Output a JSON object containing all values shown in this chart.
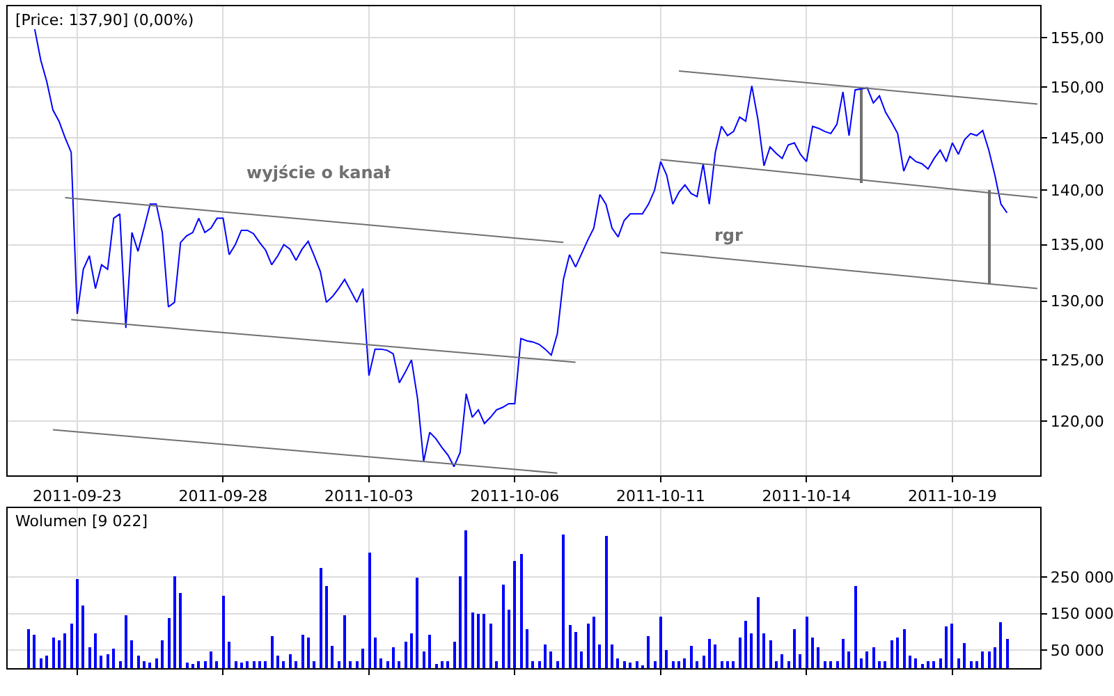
{
  "chart_data": [
    {
      "type": "line",
      "title": "[Price: 137,90] (0,00%)",
      "log": "y",
      "grid": true,
      "marker": "none",
      "line_style": "solid",
      "categories": [
        null,
        null,
        null,
        null,
        null,
        null,
        null,
        null,
        null,
        null,
        null,
        "2011-09-23",
        null,
        null,
        null,
        null,
        null,
        null,
        null,
        null,
        null,
        null,
        null,
        null,
        null,
        null,
        null,
        null,
        null,
        null,
        null,
        null,
        null,
        null,
        null,
        "2011-09-28",
        null,
        null,
        null,
        null,
        null,
        null,
        null,
        null,
        null,
        null,
        null,
        null,
        null,
        null,
        null,
        null,
        null,
        null,
        null,
        null,
        null,
        null,
        null,
        "2011-10-03",
        null,
        null,
        null,
        null,
        null,
        null,
        null,
        null,
        null,
        null,
        null,
        null,
        null,
        null,
        null,
        null,
        null,
        null,
        null,
        null,
        null,
        null,
        null,
        "2011-10-06",
        null,
        null,
        null,
        null,
        null,
        null,
        null,
        null,
        null,
        null,
        null,
        null,
        null,
        null,
        null,
        null,
        null,
        null,
        null,
        null,
        null,
        null,
        null,
        "2011-10-11",
        null,
        null,
        null,
        null,
        null,
        null,
        null,
        null,
        null,
        null,
        null,
        null,
        null,
        null,
        null,
        null,
        null,
        null,
        null,
        null,
        null,
        null,
        null,
        "2011-10-14",
        null,
        null,
        null,
        null,
        null,
        null,
        null,
        null,
        null,
        null,
        null,
        null,
        null,
        null,
        null,
        null,
        null,
        null,
        null,
        null,
        null,
        null,
        null,
        "2011-10-19",
        null,
        null,
        null,
        null,
        null,
        null,
        null,
        null,
        null,
        null,
        null,
        null,
        null,
        null
      ],
      "ylim": [
        115.7,
        158.3
      ],
      "yticks": [
        {
          "value": 120,
          "label": "120,00"
        },
        {
          "value": 125,
          "label": "125,00"
        },
        {
          "value": 130,
          "label": "130,00"
        },
        {
          "value": 135,
          "label": "135,00"
        },
        {
          "value": 140,
          "label": "140,00"
        },
        {
          "value": 145,
          "label": "145,00"
        },
        {
          "value": 150,
          "label": "150,00"
        },
        {
          "value": 155,
          "label": "155,00"
        }
      ],
      "annotations": [
        "wyjście o kanał",
        "rgr"
      ],
      "series": [
        {
          "color": "#0000ff",
          "values": [
            null,
            null,
            null,
            null,
            155.9,
            152.7,
            150.5,
            147.7,
            146.6,
            145.0,
            143.6,
            128.9,
            132.8,
            134.0,
            131.1,
            133.2,
            132.8,
            137.4,
            137.8,
            127.7,
            136.1,
            134.4,
            136.5,
            138.7,
            138.7,
            136.1,
            129.5,
            129.9,
            135.2,
            135.8,
            136.1,
            137.4,
            136.1,
            136.5,
            137.4,
            137.4,
            134.1,
            135.0,
            136.3,
            136.3,
            136.0,
            135.2,
            134.5,
            133.2,
            134.0,
            135.0,
            134.6,
            133.6,
            134.6,
            135.3,
            134.0,
            132.6,
            129.9,
            130.4,
            131.1,
            131.9,
            130.9,
            129.9,
            131.1,
            123.7,
            125.9,
            125.9,
            125.8,
            125.5,
            123.1,
            124.0,
            125.0,
            121.8,
            116.8,
            119.1,
            118.6,
            117.9,
            117.3,
            116.4,
            117.5,
            122.2,
            120.3,
            120.9,
            119.8,
            120.3,
            120.9,
            121.1,
            121.4,
            121.4,
            126.8,
            126.6,
            126.5,
            126.3,
            125.9,
            125.4,
            127.2,
            131.9,
            134.1,
            133.0,
            134.2,
            135.4,
            136.5,
            139.6,
            138.7,
            136.5,
            135.7,
            137.2,
            137.8,
            137.8,
            137.8,
            138.7,
            140.0,
            142.7,
            141.4,
            138.7,
            139.8,
            140.5,
            139.7,
            139.4,
            142.5,
            138.7,
            143.6,
            146.1,
            145.2,
            145.6,
            147.0,
            146.6,
            150.1,
            146.8,
            142.3,
            144.1,
            143.5,
            143.0,
            144.3,
            144.5,
            143.4,
            142.7,
            146.1,
            145.9,
            145.6,
            145.4,
            146.3,
            149.5,
            145.2,
            149.7,
            149.8,
            149.9,
            148.4,
            149.1,
            147.5,
            146.5,
            145.4,
            141.8,
            143.2,
            142.7,
            142.5,
            142.0,
            143.0,
            143.8,
            142.7,
            144.5,
            143.4,
            144.8,
            145.4,
            145.2,
            145.7,
            143.8,
            141.4,
            138.7,
            137.9,
            null,
            null,
            null,
            null,
            null
          ]
        },
        {
          "color": "#707070",
          "values": [
            null,
            null,
            null,
            null,
            null,
            null,
            null,
            null,
            null,
            139.3,
            null,
            null,
            null,
            null,
            null,
            null,
            null,
            null,
            null,
            null,
            null,
            null,
            null,
            null,
            null,
            null,
            null,
            null,
            null,
            null,
            null,
            null,
            null,
            null,
            null,
            null,
            null,
            null,
            null,
            null,
            null,
            null,
            null,
            null,
            null,
            null,
            null,
            null,
            null,
            null,
            null,
            null,
            null,
            null,
            null,
            null,
            null,
            null,
            null,
            null,
            null,
            null,
            null,
            null,
            null,
            null,
            null,
            null,
            null,
            null,
            null,
            null,
            null,
            null,
            null,
            null,
            null,
            null,
            null,
            null,
            null,
            null,
            null,
            null,
            null,
            null,
            null,
            null,
            null,
            null,
            null,
            135.2,
            null,
            null,
            null,
            null,
            null,
            null,
            null,
            null,
            null,
            null,
            null,
            null,
            null,
            null,
            null,
            null,
            null,
            null,
            null,
            null,
            null,
            null,
            null,
            null,
            null,
            null,
            null,
            null,
            null,
            null,
            null,
            null,
            null,
            null,
            null,
            null,
            null,
            null,
            null,
            null,
            null,
            null,
            null,
            null,
            null,
            null,
            null,
            null,
            null,
            null,
            null,
            null,
            null,
            null,
            null,
            null,
            null,
            null,
            null,
            null,
            null,
            null,
            null,
            null,
            null,
            null,
            null,
            null,
            null,
            null,
            null,
            null,
            null,
            null,
            null,
            null,
            null,
            null
          ]
        },
        {
          "color": "#707070",
          "values": [
            null,
            null,
            null,
            null,
            null,
            null,
            null,
            null,
            null,
            null,
            128.4,
            null,
            null,
            null,
            null,
            null,
            null,
            null,
            null,
            null,
            null,
            null,
            null,
            null,
            null,
            null,
            null,
            null,
            null,
            null,
            null,
            null,
            null,
            null,
            null,
            null,
            null,
            null,
            null,
            null,
            null,
            null,
            null,
            null,
            null,
            null,
            null,
            null,
            null,
            null,
            null,
            null,
            null,
            null,
            null,
            null,
            null,
            null,
            null,
            null,
            null,
            null,
            null,
            null,
            null,
            null,
            null,
            null,
            null,
            null,
            null,
            null,
            null,
            null,
            null,
            null,
            null,
            null,
            null,
            null,
            null,
            null,
            null,
            null,
            null,
            null,
            null,
            null,
            null,
            null,
            null,
            null,
            null,
            124.8,
            null,
            null,
            null,
            null,
            null,
            null,
            null,
            null,
            null,
            null,
            null,
            null,
            null,
            null,
            null,
            null,
            null,
            null,
            null,
            null,
            null,
            null,
            null,
            null,
            null,
            null,
            null,
            null,
            null,
            null,
            null,
            null,
            null,
            null,
            null,
            null,
            null,
            null,
            null,
            null,
            null,
            null,
            null,
            null,
            null,
            null,
            null,
            null,
            null,
            null,
            null,
            null,
            null,
            null,
            null,
            null,
            null,
            null,
            null,
            null,
            null,
            null,
            null,
            null,
            null,
            null,
            null,
            null,
            null,
            null,
            null,
            null,
            null,
            null,
            null,
            null
          ]
        },
        {
          "color": "#707070",
          "values": [
            null,
            null,
            null,
            null,
            null,
            null,
            null,
            119.3,
            null,
            null,
            null,
            null,
            null,
            null,
            null,
            null,
            null,
            null,
            null,
            null,
            null,
            null,
            null,
            null,
            null,
            null,
            null,
            null,
            null,
            null,
            null,
            null,
            null,
            null,
            null,
            null,
            null,
            null,
            null,
            null,
            null,
            null,
            null,
            null,
            null,
            null,
            null,
            null,
            null,
            null,
            null,
            null,
            null,
            null,
            null,
            null,
            null,
            null,
            null,
            null,
            null,
            null,
            null,
            null,
            null,
            null,
            null,
            null,
            null,
            null,
            null,
            null,
            null,
            null,
            null,
            null,
            null,
            null,
            null,
            null,
            null,
            null,
            null,
            null,
            null,
            null,
            null,
            null,
            null,
            null,
            115.9,
            null,
            null,
            null,
            null,
            null,
            null,
            null,
            null,
            null,
            null,
            null,
            null,
            null,
            null,
            null,
            null,
            null,
            null,
            null,
            null,
            null,
            null,
            null,
            null,
            null,
            null,
            null,
            null,
            null,
            null,
            null,
            null,
            null,
            null,
            null,
            null,
            null,
            null,
            null,
            null,
            null,
            null,
            null,
            null,
            null,
            null,
            null,
            null,
            null,
            null,
            null,
            null,
            null,
            null,
            null,
            null,
            null,
            null,
            null,
            null,
            null,
            null,
            null,
            null,
            null,
            null,
            null,
            null,
            null,
            null,
            null,
            null,
            null,
            null,
            null,
            null,
            null,
            null,
            null
          ]
        },
        {
          "color": "#707070",
          "values": [
            null,
            null,
            null,
            null,
            null,
            null,
            null,
            null,
            null,
            null,
            null,
            null,
            null,
            null,
            null,
            null,
            null,
            null,
            null,
            null,
            null,
            null,
            null,
            null,
            null,
            null,
            null,
            null,
            null,
            null,
            null,
            null,
            null,
            null,
            null,
            null,
            null,
            null,
            null,
            null,
            null,
            null,
            null,
            null,
            null,
            null,
            null,
            null,
            null,
            null,
            null,
            null,
            null,
            null,
            null,
            null,
            null,
            null,
            null,
            null,
            null,
            null,
            null,
            null,
            null,
            null,
            null,
            null,
            null,
            null,
            null,
            null,
            null,
            null,
            null,
            null,
            null,
            null,
            null,
            null,
            null,
            null,
            null,
            null,
            null,
            null,
            null,
            null,
            null,
            null,
            null,
            null,
            null,
            null,
            null,
            null,
            null,
            null,
            null,
            null,
            null,
            null,
            null,
            null,
            null,
            null,
            null,
            null,
            null,
            null,
            151.6,
            null,
            null,
            null,
            null,
            null,
            null,
            null,
            null,
            null,
            null,
            null,
            null,
            null,
            null,
            null,
            null,
            null,
            null,
            null,
            null,
            null,
            null,
            null,
            null,
            null,
            null,
            null,
            null,
            null,
            null,
            null,
            null,
            null,
            null,
            null,
            null,
            null,
            null,
            null,
            null,
            null,
            null,
            null,
            null,
            null,
            null,
            null,
            null,
            null,
            null,
            null,
            null,
            null,
            null,
            null,
            null,
            null,
            null,
            148.3
          ]
        },
        {
          "color": "#707070",
          "values": [
            null,
            null,
            null,
            null,
            null,
            null,
            null,
            null,
            null,
            null,
            null,
            null,
            null,
            null,
            null,
            null,
            null,
            null,
            null,
            null,
            null,
            null,
            null,
            null,
            null,
            null,
            null,
            null,
            null,
            null,
            null,
            null,
            null,
            null,
            null,
            null,
            null,
            null,
            null,
            null,
            null,
            null,
            null,
            null,
            null,
            null,
            null,
            null,
            null,
            null,
            null,
            null,
            null,
            null,
            null,
            null,
            null,
            null,
            null,
            null,
            null,
            null,
            null,
            null,
            null,
            null,
            null,
            null,
            null,
            null,
            null,
            null,
            null,
            null,
            null,
            null,
            null,
            null,
            null,
            null,
            null,
            null,
            null,
            null,
            null,
            null,
            null,
            null,
            null,
            null,
            null,
            null,
            null,
            null,
            null,
            null,
            null,
            null,
            null,
            null,
            null,
            null,
            null,
            null,
            null,
            null,
            null,
            142.9,
            null,
            null,
            null,
            null,
            null,
            null,
            null,
            null,
            null,
            null,
            null,
            null,
            null,
            null,
            null,
            null,
            null,
            null,
            null,
            null,
            null,
            null,
            null,
            null,
            null,
            null,
            null,
            null,
            null,
            null,
            null,
            null,
            null,
            null,
            null,
            null,
            null,
            null,
            null,
            null,
            null,
            null,
            null,
            null,
            null,
            null,
            null,
            null,
            null,
            null,
            null,
            null,
            null,
            null,
            null,
            null,
            null,
            null,
            null,
            null,
            null,
            139.3
          ]
        },
        {
          "color": "#707070",
          "values": [
            null,
            null,
            null,
            null,
            null,
            null,
            null,
            null,
            null,
            null,
            null,
            null,
            null,
            null,
            null,
            null,
            null,
            null,
            null,
            null,
            null,
            null,
            null,
            null,
            null,
            null,
            null,
            null,
            null,
            null,
            null,
            null,
            null,
            null,
            null,
            null,
            null,
            null,
            null,
            null,
            null,
            null,
            null,
            null,
            null,
            null,
            null,
            null,
            null,
            null,
            null,
            null,
            null,
            null,
            null,
            null,
            null,
            null,
            null,
            null,
            null,
            null,
            null,
            null,
            null,
            null,
            null,
            null,
            null,
            null,
            null,
            null,
            null,
            null,
            null,
            null,
            null,
            null,
            null,
            null,
            null,
            null,
            null,
            null,
            null,
            null,
            null,
            null,
            null,
            null,
            null,
            null,
            null,
            null,
            null,
            null,
            null,
            null,
            null,
            null,
            null,
            null,
            null,
            null,
            null,
            null,
            null,
            134.3,
            null,
            null,
            null,
            null,
            null,
            null,
            null,
            null,
            null,
            null,
            null,
            null,
            null,
            null,
            null,
            null,
            null,
            null,
            null,
            null,
            null,
            null,
            null,
            null,
            null,
            null,
            null,
            null,
            null,
            null,
            null,
            null,
            null,
            null,
            null,
            null,
            null,
            null,
            null,
            null,
            null,
            null,
            null,
            null,
            null,
            null,
            null,
            null,
            null,
            null,
            null,
            null,
            null,
            null,
            null,
            null,
            null,
            null,
            null,
            null,
            null,
            131.1
          ]
        },
        {
          "type": "bar",
          "color": "#707070",
          "values": [
            null,
            null,
            null,
            null,
            null,
            null,
            null,
            null,
            null,
            null,
            null,
            null,
            null,
            null,
            null,
            null,
            null,
            null,
            null,
            null,
            null,
            null,
            null,
            null,
            null,
            null,
            null,
            null,
            null,
            null,
            null,
            null,
            null,
            null,
            null,
            null,
            null,
            null,
            null,
            null,
            null,
            null,
            null,
            null,
            null,
            null,
            null,
            null,
            null,
            null,
            null,
            null,
            null,
            null,
            null,
            null,
            null,
            null,
            null,
            null,
            null,
            null,
            null,
            null,
            null,
            null,
            null,
            null,
            null,
            null,
            null,
            null,
            null,
            null,
            null,
            null,
            null,
            null,
            null,
            null,
            null,
            null,
            null,
            null,
            null,
            null,
            null,
            null,
            null,
            null,
            null,
            null,
            null,
            null,
            null,
            null,
            null,
            null,
            null,
            null,
            null,
            null,
            null,
            null,
            null,
            null,
            null,
            null,
            null,
            null,
            null,
            null,
            null,
            null,
            null,
            null,
            null,
            null,
            null,
            null,
            null,
            null,
            null,
            null,
            null,
            null,
            null,
            null,
            null,
            null,
            null,
            null,
            null,
            null,
            null,
            null,
            null,
            null,
            null,
            null,
            9.2,
            null,
            null,
            null,
            null,
            null,
            null,
            null,
            null,
            null,
            null,
            null,
            null,
            null,
            null,
            null,
            null,
            null,
            null,
            null,
            null,
            8.5,
            null,
            null,
            null,
            null,
            null,
            null,
            null,
            null
          ],
          "base": [
            null,
            null,
            null,
            null,
            null,
            null,
            null,
            null,
            null,
            null,
            null,
            null,
            null,
            null,
            null,
            null,
            null,
            null,
            null,
            null,
            null,
            null,
            null,
            null,
            null,
            null,
            null,
            null,
            null,
            null,
            null,
            null,
            null,
            null,
            null,
            null,
            null,
            null,
            null,
            null,
            null,
            null,
            null,
            null,
            null,
            null,
            null,
            null,
            null,
            null,
            null,
            null,
            null,
            null,
            null,
            null,
            null,
            null,
            null,
            null,
            null,
            null,
            null,
            null,
            null,
            null,
            null,
            null,
            null,
            null,
            null,
            null,
            null,
            null,
            null,
            null,
            null,
            null,
            null,
            null,
            null,
            null,
            null,
            null,
            null,
            null,
            null,
            null,
            null,
            null,
            null,
            null,
            null,
            null,
            null,
            null,
            null,
            null,
            null,
            null,
            null,
            null,
            null,
            null,
            null,
            null,
            null,
            null,
            null,
            null,
            null,
            null,
            null,
            null,
            null,
            null,
            null,
            null,
            null,
            null,
            null,
            null,
            null,
            null,
            null,
            null,
            null,
            null,
            null,
            null,
            null,
            null,
            null,
            null,
            null,
            null,
            null,
            null,
            null,
            null,
            140.7,
            null,
            null,
            null,
            null,
            null,
            null,
            null,
            null,
            null,
            null,
            null,
            null,
            null,
            null,
            null,
            null,
            null,
            null,
            null,
            null,
            131.5,
            null,
            null,
            null,
            null,
            null,
            null,
            null,
            null
          ]
        }
      ]
    },
    {
      "type": "bar",
      "title": "Wolumen [9 022]",
      "grid": true,
      "tick_labels": "y",
      "categories": [
        null,
        null,
        null,
        null,
        null,
        null,
        null,
        null,
        null,
        null,
        null,
        "2011-09-23",
        null,
        null,
        null,
        null,
        null,
        null,
        null,
        null,
        null,
        null,
        null,
        null,
        null,
        null,
        null,
        null,
        null,
        null,
        null,
        null,
        null,
        null,
        null,
        "2011-09-28",
        null,
        null,
        null,
        null,
        null,
        null,
        null,
        null,
        null,
        null,
        null,
        null,
        null,
        null,
        null,
        null,
        null,
        null,
        null,
        null,
        null,
        null,
        null,
        "2011-10-03",
        null,
        null,
        null,
        null,
        null,
        null,
        null,
        null,
        null,
        null,
        null,
        null,
        null,
        null,
        null,
        null,
        null,
        null,
        null,
        null,
        null,
        null,
        null,
        "2011-10-06",
        null,
        null,
        null,
        null,
        null,
        null,
        null,
        null,
        null,
        null,
        null,
        null,
        null,
        null,
        null,
        null,
        null,
        null,
        null,
        null,
        null,
        null,
        null,
        "2011-10-11",
        null,
        null,
        null,
        null,
        null,
        null,
        null,
        null,
        null,
        null,
        null,
        null,
        null,
        null,
        null,
        null,
        null,
        null,
        null,
        null,
        null,
        null,
        null,
        "2011-10-14",
        null,
        null,
        null,
        null,
        null,
        null,
        null,
        null,
        null,
        null,
        null,
        null,
        null,
        null,
        null,
        null,
        null,
        null,
        null,
        null,
        null,
        null,
        null,
        "2011-10-19",
        null,
        null,
        null,
        null,
        null,
        null,
        null,
        null,
        null,
        null,
        null,
        null,
        null,
        null
      ],
      "ylim": [
        0,
        440000
      ],
      "yticks": [
        {
          "value": 50000,
          "label": "50 000"
        },
        {
          "value": 150000,
          "label": "150 000"
        },
        {
          "value": 250000,
          "label": "250 000"
        }
      ],
      "series": [
        {
          "color": "#0000ff",
          "values": [
            null,
            null,
            null,
            109000,
            90000,
            27000,
            33000,
            84000,
            78000,
            97000,
            122000,
            245000,
            173000,
            59000,
            97000,
            33000,
            39000,
            52000,
            20000,
            144000,
            78000,
            33000,
            20000,
            14000,
            27000,
            78000,
            139000,
            253000,
            207000,
            17000,
            11000,
            20000,
            20000,
            46000,
            20000,
            198000,
            71000,
            20000,
            14000,
            20000,
            20000,
            20000,
            20000,
            88000,
            33000,
            20000,
            39000,
            20000,
            90000,
            84000,
            20000,
            275000,
            226000,
            62000,
            20000,
            144000,
            20000,
            20000,
            52000,
            317000,
            84000,
            27000,
            20000,
            59000,
            20000,
            71000,
            97000,
            249000,
            46000,
            90000,
            11000,
            20000,
            20000,
            71000,
            253000,
            379000,
            154000,
            148000,
            148000,
            122000,
            20000,
            230000,
            160000,
            294000,
            313000,
            109000,
            20000,
            20000,
            65000,
            46000,
            20000,
            368000,
            118000,
            100000,
            46000,
            122000,
            141000,
            65000,
            364000,
            65000,
            27000,
            20000,
            14000,
            20000,
            8000,
            88000,
            20000,
            141000,
            50000,
            20000,
            20000,
            27000,
            62000,
            20000,
            33000,
            81000,
            65000,
            20000,
            20000,
            20000,
            84000,
            131000,
            97000,
            195000,
            97000,
            78000,
            20000,
            39000,
            20000,
            109000,
            39000,
            141000,
            84000,
            59000,
            20000,
            20000,
            20000,
            81000,
            46000,
            226000,
            27000,
            46000,
            59000,
            20000,
            20000,
            75000,
            84000,
            109000,
            33000,
            27000,
            11000,
            20000,
            20000,
            27000,
            113000,
            122000,
            27000,
            67000,
            20000,
            20000,
            46000,
            46000,
            59000,
            126000,
            80000,
            null,
            null,
            null,
            null,
            null
          ]
        }
      ]
    }
  ]
}
